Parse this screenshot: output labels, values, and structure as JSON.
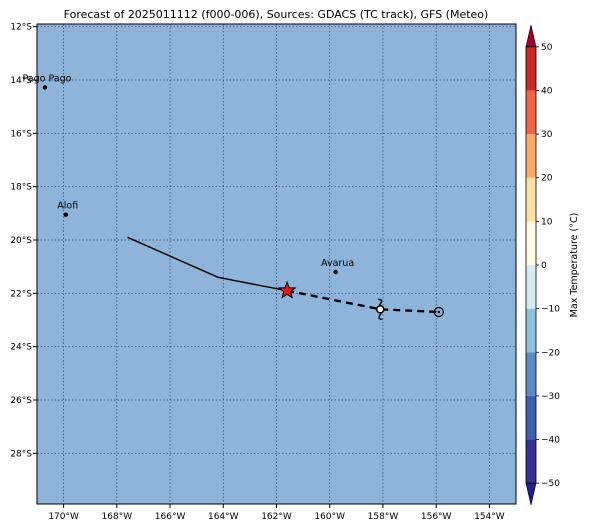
{
  "title": "Forecast of 2025011112 (f000-006), Sources: GDACS (TC track), GFS (Meteo)",
  "map": {
    "lon_range": [
      -171.0,
      -153.0
    ],
    "lat_range": [
      -29.9,
      -11.9
    ],
    "ocean_color": "#8fb4d9",
    "x_ticks": [
      {
        "lon": -170,
        "label": "170°W"
      },
      {
        "lon": -168,
        "label": "168°W"
      },
      {
        "lon": -166,
        "label": "166°W"
      },
      {
        "lon": -164,
        "label": "164°W"
      },
      {
        "lon": -162,
        "label": "162°W"
      },
      {
        "lon": -160,
        "label": "160°W"
      },
      {
        "lon": -158,
        "label": "158°W"
      },
      {
        "lon": -156,
        "label": "156°W"
      },
      {
        "lon": -154,
        "label": "154°W"
      }
    ],
    "y_ticks": [
      {
        "lat": -12,
        "label": "12°S"
      },
      {
        "lat": -14,
        "label": "14°S"
      },
      {
        "lat": -16,
        "label": "16°S"
      },
      {
        "lat": -18,
        "label": "18°S"
      },
      {
        "lat": -20,
        "label": "20°S"
      },
      {
        "lat": -22,
        "label": "22°S"
      },
      {
        "lat": -24,
        "label": "24°S"
      },
      {
        "lat": -26,
        "label": "26°S"
      },
      {
        "lat": -28,
        "label": "28°S"
      }
    ],
    "places": [
      {
        "name": "Pago Pago",
        "lon": -170.7,
        "lat": -14.28
      },
      {
        "name": "Alofi",
        "lon": -169.92,
        "lat": -19.05
      },
      {
        "name": "Avarua",
        "lon": -159.78,
        "lat": -21.2
      }
    ],
    "past_track": [
      {
        "lon": -167.6,
        "lat": -19.9
      },
      {
        "lon": -164.2,
        "lat": -21.4
      },
      {
        "lon": -161.6,
        "lat": -21.9
      }
    ],
    "forecast_track": [
      {
        "lon": -161.6,
        "lat": -21.9
      },
      {
        "lon": -158.1,
        "lat": -22.6
      },
      {
        "lon": -155.9,
        "lat": -22.7
      }
    ],
    "current_position": {
      "lon": -161.6,
      "lat": -21.9,
      "color": "#e31a1c"
    },
    "forecast_symbols": [
      {
        "lon": -158.1,
        "lat": -22.6,
        "kind": "storm-symbol"
      },
      {
        "lon": -155.9,
        "lat": -22.7,
        "kind": "circle-symbol"
      }
    ]
  },
  "colorbar": {
    "label": "Max Temperature (°C)",
    "min": -55,
    "max": 55,
    "ticks": [
      "50",
      "40",
      "30",
      "20",
      "10",
      "0",
      "−10",
      "−20",
      "−30",
      "−40",
      "−50"
    ],
    "tick_values": [
      50,
      40,
      30,
      20,
      10,
      0,
      -10,
      -20,
      -30,
      -40,
      -50
    ],
    "bins": [
      {
        "from": -50,
        "to": -40,
        "color": "#323296"
      },
      {
        "from": -40,
        "to": -30,
        "color": "#3e60ab"
      },
      {
        "from": -30,
        "to": -20,
        "color": "#5c8bc3"
      },
      {
        "from": -20,
        "to": -10,
        "color": "#8fc0dc"
      },
      {
        "from": -10,
        "to": 0,
        "color": "#d4ecf4"
      },
      {
        "from": 0,
        "to": 10,
        "color": "#fdfbe2"
      },
      {
        "from": 10,
        "to": 20,
        "color": "#fde1a4"
      },
      {
        "from": 20,
        "to": 30,
        "color": "#fcaa66"
      },
      {
        "from": 30,
        "to": 40,
        "color": "#f06343"
      },
      {
        "from": 40,
        "to": 50,
        "color": "#cc2a2a"
      }
    ],
    "under_color": "#21208a",
    "over_color": "#a50026"
  }
}
